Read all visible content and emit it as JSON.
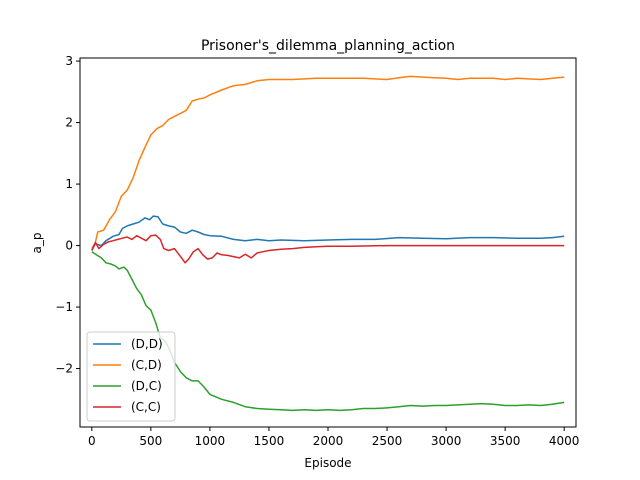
{
  "chart_data": {
    "type": "line",
    "title": "Prisoner's_dilemma_planning_action",
    "xlabel": "Episode",
    "ylabel": "a_p",
    "xlim": [
      -100,
      4100
    ],
    "ylim": [
      -2.95,
      3.05
    ],
    "xticks": [
      0,
      500,
      1000,
      1500,
      2000,
      2500,
      3000,
      3500,
      4000
    ],
    "xtick_labels": [
      "0",
      "500",
      "1000",
      "1500",
      "2000",
      "2500",
      "3000",
      "3500",
      "4000"
    ],
    "yticks": [
      -2,
      -1,
      0,
      1,
      2,
      3
    ],
    "ytick_labels": [
      "−2",
      "−1",
      "0",
      "1",
      "2",
      "3"
    ],
    "grid": false,
    "legend_position": "lower-left",
    "series": [
      {
        "name": "(D,D)",
        "color": "#1f77b4",
        "points": [
          [
            0,
            -0.08
          ],
          [
            30,
            0.03
          ],
          [
            80,
            0.0
          ],
          [
            120,
            0.08
          ],
          [
            180,
            0.15
          ],
          [
            230,
            0.18
          ],
          [
            260,
            0.28
          ],
          [
            300,
            0.32
          ],
          [
            350,
            0.35
          ],
          [
            400,
            0.38
          ],
          [
            450,
            0.45
          ],
          [
            490,
            0.42
          ],
          [
            520,
            0.48
          ],
          [
            560,
            0.47
          ],
          [
            600,
            0.35
          ],
          [
            650,
            0.32
          ],
          [
            700,
            0.3
          ],
          [
            750,
            0.22
          ],
          [
            800,
            0.2
          ],
          [
            850,
            0.25
          ],
          [
            900,
            0.22
          ],
          [
            950,
            0.18
          ],
          [
            1000,
            0.16
          ],
          [
            1100,
            0.15
          ],
          [
            1200,
            0.1
          ],
          [
            1300,
            0.08
          ],
          [
            1400,
            0.1
          ],
          [
            1500,
            0.08
          ],
          [
            1600,
            0.09
          ],
          [
            1800,
            0.08
          ],
          [
            2000,
            0.09
          ],
          [
            2200,
            0.1
          ],
          [
            2400,
            0.1
          ],
          [
            2600,
            0.13
          ],
          [
            2800,
            0.12
          ],
          [
            3000,
            0.11
          ],
          [
            3200,
            0.13
          ],
          [
            3400,
            0.13
          ],
          [
            3600,
            0.12
          ],
          [
            3800,
            0.12
          ],
          [
            3900,
            0.13
          ],
          [
            4000,
            0.15
          ]
        ]
      },
      {
        "name": "(C,D)",
        "color": "#ff7f0e",
        "points": [
          [
            0,
            -0.05
          ],
          [
            30,
            0.05
          ],
          [
            50,
            0.22
          ],
          [
            100,
            0.25
          ],
          [
            150,
            0.42
          ],
          [
            200,
            0.55
          ],
          [
            250,
            0.8
          ],
          [
            300,
            0.9
          ],
          [
            350,
            1.1
          ],
          [
            400,
            1.38
          ],
          [
            450,
            1.6
          ],
          [
            500,
            1.8
          ],
          [
            550,
            1.9
          ],
          [
            600,
            1.95
          ],
          [
            650,
            2.05
          ],
          [
            700,
            2.1
          ],
          [
            750,
            2.15
          ],
          [
            800,
            2.2
          ],
          [
            850,
            2.35
          ],
          [
            900,
            2.38
          ],
          [
            950,
            2.4
          ],
          [
            1000,
            2.45
          ],
          [
            1100,
            2.53
          ],
          [
            1200,
            2.6
          ],
          [
            1300,
            2.62
          ],
          [
            1400,
            2.68
          ],
          [
            1500,
            2.7
          ],
          [
            1700,
            2.7
          ],
          [
            1900,
            2.72
          ],
          [
            2100,
            2.72
          ],
          [
            2300,
            2.72
          ],
          [
            2500,
            2.7
          ],
          [
            2600,
            2.73
          ],
          [
            2700,
            2.75
          ],
          [
            2900,
            2.73
          ],
          [
            3000,
            2.72
          ],
          [
            3100,
            2.7
          ],
          [
            3200,
            2.72
          ],
          [
            3400,
            2.72
          ],
          [
            3500,
            2.7
          ],
          [
            3600,
            2.72
          ],
          [
            3800,
            2.7
          ],
          [
            3900,
            2.72
          ],
          [
            4000,
            2.74
          ]
        ]
      },
      {
        "name": "(D,C)",
        "color": "#2ca02c",
        "points": [
          [
            0,
            -0.1
          ],
          [
            40,
            -0.15
          ],
          [
            80,
            -0.2
          ],
          [
            120,
            -0.28
          ],
          [
            160,
            -0.3
          ],
          [
            200,
            -0.33
          ],
          [
            230,
            -0.38
          ],
          [
            270,
            -0.35
          ],
          [
            300,
            -0.4
          ],
          [
            340,
            -0.55
          ],
          [
            380,
            -0.7
          ],
          [
            420,
            -0.8
          ],
          [
            460,
            -0.98
          ],
          [
            500,
            -1.05
          ],
          [
            540,
            -1.25
          ],
          [
            580,
            -1.5
          ],
          [
            620,
            -1.55
          ],
          [
            660,
            -1.7
          ],
          [
            700,
            -1.9
          ],
          [
            750,
            -2.05
          ],
          [
            800,
            -2.15
          ],
          [
            850,
            -2.2
          ],
          [
            900,
            -2.2
          ],
          [
            950,
            -2.3
          ],
          [
            1000,
            -2.42
          ],
          [
            1100,
            -2.5
          ],
          [
            1200,
            -2.55
          ],
          [
            1300,
            -2.62
          ],
          [
            1400,
            -2.65
          ],
          [
            1500,
            -2.66
          ],
          [
            1600,
            -2.67
          ],
          [
            1700,
            -2.68
          ],
          [
            1800,
            -2.67
          ],
          [
            1900,
            -2.68
          ],
          [
            2000,
            -2.67
          ],
          [
            2100,
            -2.68
          ],
          [
            2200,
            -2.67
          ],
          [
            2300,
            -2.65
          ],
          [
            2400,
            -2.65
          ],
          [
            2500,
            -2.64
          ],
          [
            2600,
            -2.62
          ],
          [
            2700,
            -2.6
          ],
          [
            2800,
            -2.61
          ],
          [
            2900,
            -2.6
          ],
          [
            3000,
            -2.6
          ],
          [
            3100,
            -2.59
          ],
          [
            3200,
            -2.58
          ],
          [
            3300,
            -2.57
          ],
          [
            3400,
            -2.58
          ],
          [
            3500,
            -2.6
          ],
          [
            3600,
            -2.6
          ],
          [
            3700,
            -2.59
          ],
          [
            3800,
            -2.6
          ],
          [
            3900,
            -2.58
          ],
          [
            4000,
            -2.55
          ]
        ]
      },
      {
        "name": "(C,C)",
        "color": "#d62728",
        "points": [
          [
            0,
            -0.08
          ],
          [
            30,
            0.05
          ],
          [
            60,
            -0.05
          ],
          [
            100,
            0.02
          ],
          [
            140,
            0.06
          ],
          [
            180,
            0.08
          ],
          [
            220,
            0.1
          ],
          [
            260,
            0.12
          ],
          [
            300,
            0.14
          ],
          [
            340,
            0.1
          ],
          [
            380,
            0.16
          ],
          [
            420,
            0.12
          ],
          [
            460,
            0.08
          ],
          [
            500,
            0.16
          ],
          [
            540,
            0.17
          ],
          [
            580,
            0.1
          ],
          [
            610,
            -0.05
          ],
          [
            650,
            -0.08
          ],
          [
            700,
            -0.05
          ],
          [
            720,
            -0.1
          ],
          [
            760,
            -0.2
          ],
          [
            790,
            -0.28
          ],
          [
            820,
            -0.22
          ],
          [
            860,
            -0.1
          ],
          [
            900,
            -0.05
          ],
          [
            940,
            -0.15
          ],
          [
            980,
            -0.22
          ],
          [
            1020,
            -0.2
          ],
          [
            1060,
            -0.12
          ],
          [
            1100,
            -0.15
          ],
          [
            1150,
            -0.16
          ],
          [
            1200,
            -0.18
          ],
          [
            1250,
            -0.2
          ],
          [
            1300,
            -0.14
          ],
          [
            1350,
            -0.2
          ],
          [
            1400,
            -0.12
          ],
          [
            1450,
            -0.1
          ],
          [
            1500,
            -0.08
          ],
          [
            1600,
            -0.06
          ],
          [
            1700,
            -0.05
          ],
          [
            1800,
            -0.03
          ],
          [
            1900,
            -0.02
          ],
          [
            2000,
            -0.01
          ],
          [
            2200,
            -0.01
          ],
          [
            2500,
            0.0
          ],
          [
            3000,
            0.0
          ],
          [
            3500,
            0.0
          ],
          [
            4000,
            0.0
          ]
        ]
      }
    ]
  }
}
